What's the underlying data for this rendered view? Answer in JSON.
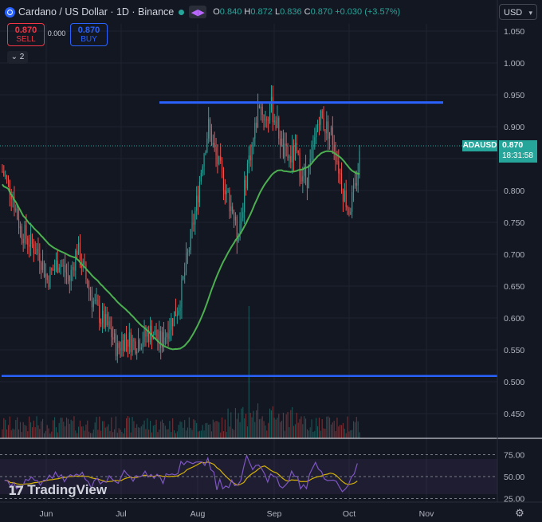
{
  "header": {
    "title": "Cardano / US Dollar · 1D · Binance",
    "ohlc": {
      "o_label": "O",
      "o": "0.840",
      "h_label": "H",
      "h": "0.872",
      "l_label": "L",
      "l": "0.836",
      "c_label": "C",
      "c": "0.870",
      "change": "+0.030 (+3.57%)"
    }
  },
  "trade": {
    "sell_price": "0.870",
    "sell_label": "SELL",
    "spread": "0.000",
    "buy_price": "0.870",
    "buy_label": "BUY"
  },
  "indicators_collapse": "2",
  "currency": "USD",
  "price_tag": {
    "symbol": "ADAUSD",
    "price": "0.870",
    "countdown": "18:31:58"
  },
  "logo": "TradingView",
  "chart_data": {
    "type": "candlestick",
    "price_axis": {
      "ticks": [
        "1.050",
        "1.000",
        "0.950",
        "0.900",
        "0.850",
        "0.800",
        "0.750",
        "0.700",
        "0.650",
        "0.600",
        "0.550",
        "0.500",
        "0.450"
      ]
    },
    "time_axis": {
      "ticks": [
        "Jun",
        "Jul",
        "Aug",
        "Sep",
        "Oct",
        "Nov"
      ]
    },
    "rsi_axis": {
      "ticks": [
        "75.00",
        "50.00",
        "25.00"
      ]
    },
    "last_close": 0.87,
    "moving_average_color": "#4caf50",
    "resistance_line": 0.938,
    "support_line": 0.509,
    "colors": {
      "up": "#26a69a",
      "down": "#ef5350",
      "lines": "#2962ff",
      "rsi": "#7e57c2",
      "rsi_ma": "#d4b106"
    }
  }
}
